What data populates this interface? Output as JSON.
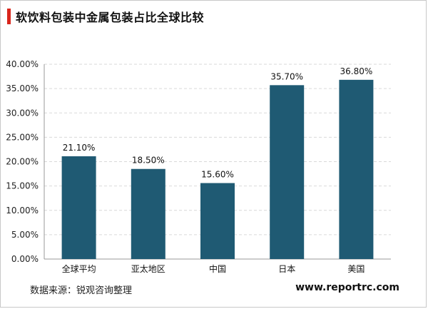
{
  "title": "软饮料包装中金属包装占比全球比较",
  "source": "数据来源：锐观咨询整理",
  "website": "www.reportrc.com",
  "colors": {
    "bar": "#1f5a73",
    "accent": "#d9261c",
    "grid": "#d9d9d9"
  },
  "chart_data": {
    "type": "bar",
    "categories": [
      "全球平均",
      "亚太地区",
      "中国",
      "日本",
      "美国"
    ],
    "values": [
      21.1,
      18.5,
      15.6,
      35.7,
      36.8
    ],
    "value_labels": [
      "21.10%",
      "18.50%",
      "15.60%",
      "35.70%",
      "36.80%"
    ],
    "ylim": [
      0,
      40
    ],
    "yticks": [
      0,
      5,
      10,
      15,
      20,
      25,
      30,
      35,
      40
    ],
    "ytick_labels": [
      "0.00%",
      "5.00%",
      "10.00%",
      "15.00%",
      "20.00%",
      "25.00%",
      "30.00%",
      "35.00%",
      "40.00%"
    ],
    "grid": true,
    "legend": false
  }
}
